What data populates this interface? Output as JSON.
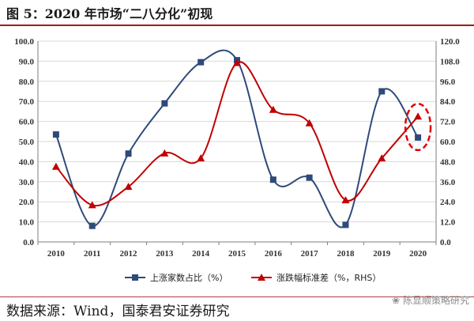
{
  "figure": {
    "title": "图 5：2020 年市场“二八分化”初现",
    "source": "数据来源：Wind，国泰君安证券研究",
    "watermark": "陈显顺策略研究"
  },
  "chart_data": {
    "type": "line",
    "title": "图 5：2020 年市场“二八分化”初现",
    "categories": [
      "2010",
      "2011",
      "2012",
      "2013",
      "2014",
      "2015",
      "2016",
      "2017",
      "2018",
      "2019",
      "2020"
    ],
    "left_axis": {
      "min": 0,
      "max": 100,
      "step": 10,
      "tick_labels": [
        "0.0",
        "10.0",
        "20.0",
        "30.0",
        "40.0",
        "50.0",
        "60.0",
        "70.0",
        "80.0",
        "90.0",
        "100.0"
      ]
    },
    "right_axis": {
      "min": 0,
      "max": 120,
      "step": 12,
      "tick_labels": [
        "0.0",
        "12.0",
        "24.0",
        "36.0",
        "48.0",
        "60.0",
        "72.0",
        "84.0",
        "96.0",
        "108.0",
        "120.0"
      ]
    },
    "series": [
      {
        "name": "上涨家数占比（%）",
        "axis": "left",
        "color": "#2e4a7a",
        "marker": "square",
        "values": [
          53.5,
          8.0,
          44.0,
          69.0,
          89.5,
          90.5,
          31.0,
          32.0,
          8.5,
          75.0,
          52.0
        ]
      },
      {
        "name": "涨跌幅标准差（%，RHS）",
        "axis": "right",
        "color": "#c00000",
        "marker": "triangle",
        "values": [
          45.0,
          22.0,
          33.0,
          53.0,
          50.0,
          107.0,
          79.0,
          71.0,
          25.0,
          50.0,
          75.0
        ]
      }
    ],
    "grid": true,
    "legend_position": "bottom",
    "annotation": {
      "type": "dashed-ellipse",
      "color": "#e00000",
      "category": "2020"
    }
  }
}
